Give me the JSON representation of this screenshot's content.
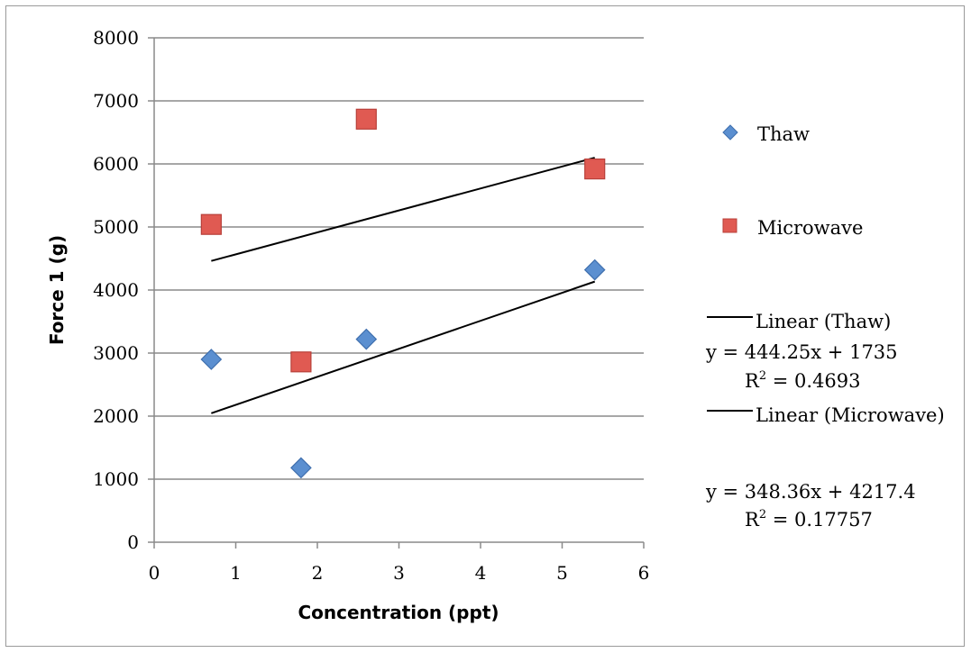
{
  "chart_data": {
    "type": "scatter",
    "xlabel": "Concentration (ppt)",
    "ylabel": "Force 1 (g)",
    "xlim": [
      0,
      6
    ],
    "ylim": [
      0,
      8000
    ],
    "xticks": [
      "0",
      "1",
      "2",
      "3",
      "4",
      "5",
      "6"
    ],
    "yticks": [
      "0",
      "1000",
      "2000",
      "3000",
      "4000",
      "5000",
      "6000",
      "7000",
      "8000"
    ],
    "grid": "horizontal",
    "legend_position": "right",
    "series": [
      {
        "name": "Thaw",
        "marker": "diamond",
        "color": "#5b8fd0",
        "points": [
          {
            "x": 0.7,
            "y": 2900
          },
          {
            "x": 1.8,
            "y": 1180
          },
          {
            "x": 2.6,
            "y": 3220
          },
          {
            "x": 5.4,
            "y": 4320
          }
        ]
      },
      {
        "name": "Microwave",
        "marker": "square",
        "color": "#e05a52",
        "points": [
          {
            "x": 0.7,
            "y": 5040
          },
          {
            "x": 1.8,
            "y": 2860
          },
          {
            "x": 2.6,
            "y": 6710
          },
          {
            "x": 5.4,
            "y": 5920
          }
        ]
      }
    ],
    "trendlines": [
      {
        "name": "Linear (Thaw)",
        "slope": 444.25,
        "intercept": 1735,
        "x_range": [
          0.7,
          5.4
        ],
        "equation": "y = 444.25x + 1735",
        "r2_label": "R",
        "r2_sup": "2",
        "r2_value": " = 0.4693"
      },
      {
        "name": "Linear (Microwave)",
        "slope": 348.36,
        "intercept": 4217.4,
        "x_range": [
          0.7,
          5.4
        ],
        "equation": "y = 348.36x + 4217.4",
        "r2_label": "R",
        "r2_sup": "2",
        "r2_value": " = 0.17757"
      }
    ]
  }
}
